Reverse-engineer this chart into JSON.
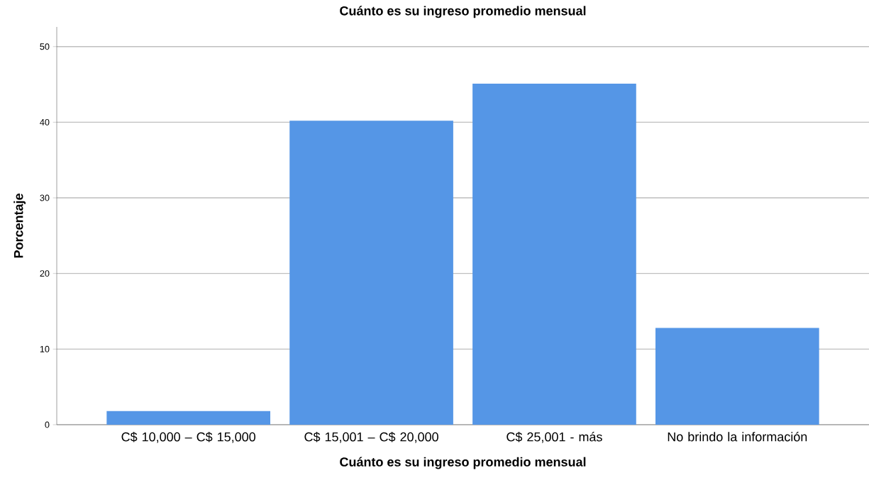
{
  "chart_data": {
    "type": "bar",
    "title": "Cuánto es su ingreso promedio mensual",
    "xlabel": "Cuánto es su ingreso promedio mensual",
    "ylabel": "Porcentaje",
    "categories": [
      "C$ 10,000 – C$ 15,000",
      "C$ 15,001 – C$ 20,000",
      "C$ 25,001 - más",
      "No brindo la información"
    ],
    "values": [
      1.8,
      40.2,
      45.1,
      12.8
    ],
    "color": "#5596e6",
    "ylim": [
      0,
      52.6
    ],
    "yticks": [
      0,
      10,
      20,
      30,
      40,
      50
    ],
    "grid": "y"
  }
}
